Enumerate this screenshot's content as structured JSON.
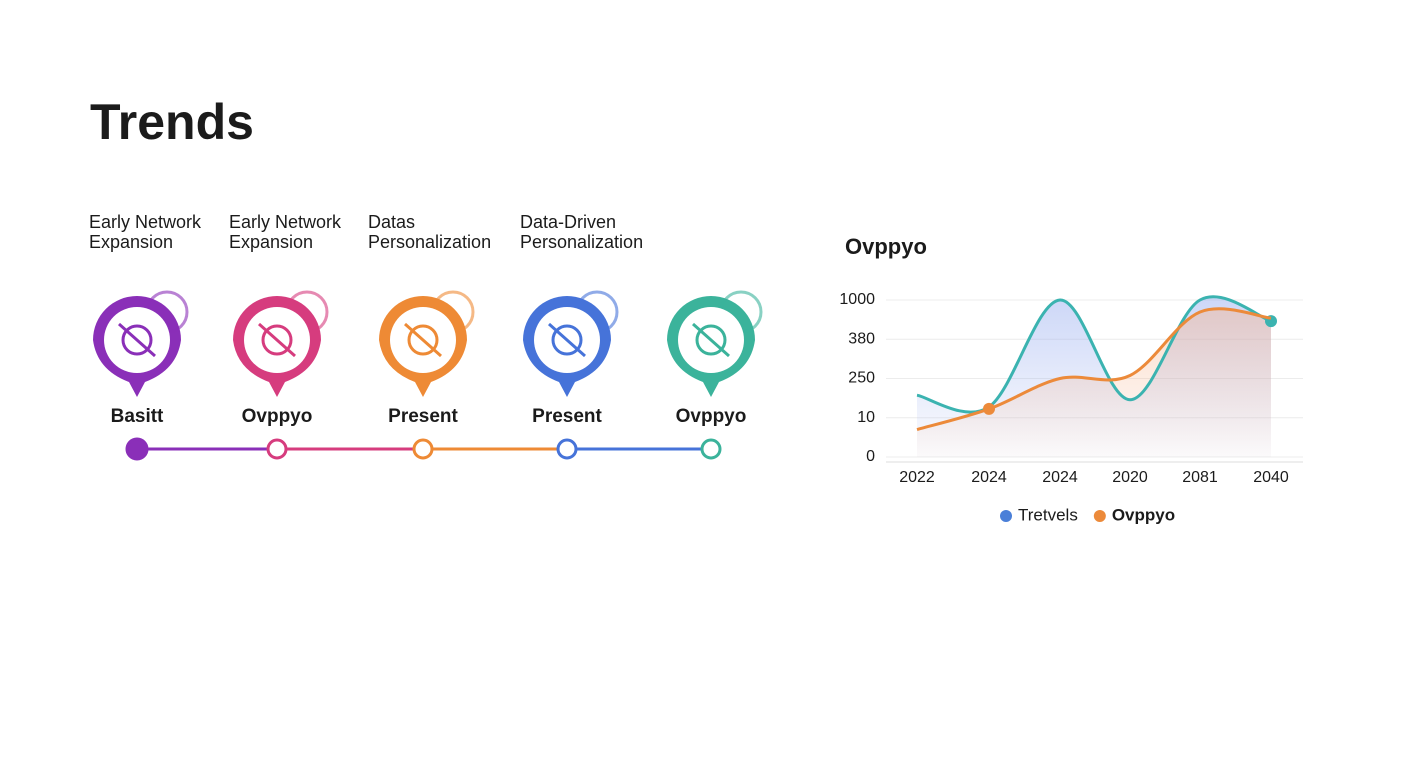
{
  "title": "Trends",
  "timeline": [
    {
      "header": [
        "Early Network",
        "Expansion"
      ],
      "label": "Basitt",
      "color": "#8a2fb8"
    },
    {
      "header": [
        "Early Network",
        "Expansion"
      ],
      "label": "Ovppyo",
      "color": "#d63c7e"
    },
    {
      "header": [
        "Datas",
        "Personalization"
      ],
      "label": "Present",
      "color": "#ee8a35"
    },
    {
      "header": [
        "Data-Driven",
        "Personalization"
      ],
      "label": "Present",
      "color": "#4673d9"
    },
    {
      "label": "Ovppyo",
      "color": "#3bb39b"
    }
  ],
  "chart_data": {
    "type": "line",
    "title": "Ovppyo",
    "categories": [
      "2022",
      "2024",
      "2024",
      "2020",
      "2081",
      "2040"
    ],
    "series": [
      {
        "name": "Tretvels",
        "color": "#3bb3b0",
        "legend_color": "#4a7fd8",
        "area_color": "#8fa6ee",
        "values": [
          148,
          76,
          1000,
          120,
          1000,
          666
        ],
        "marker": 5
      },
      {
        "name": "Ovppyo",
        "color": "#ec8a3a",
        "legend_color": "#ec8a3a",
        "area_color": "#f7b48e",
        "values": [
          7,
          64,
          250,
          260,
          810,
          714
        ],
        "marker": 1
      }
    ],
    "ylim": [
      0,
      1000
    ],
    "yticks": [
      1000,
      380,
      250,
      10,
      0
    ],
    "grid": true,
    "legend": "bottom"
  }
}
